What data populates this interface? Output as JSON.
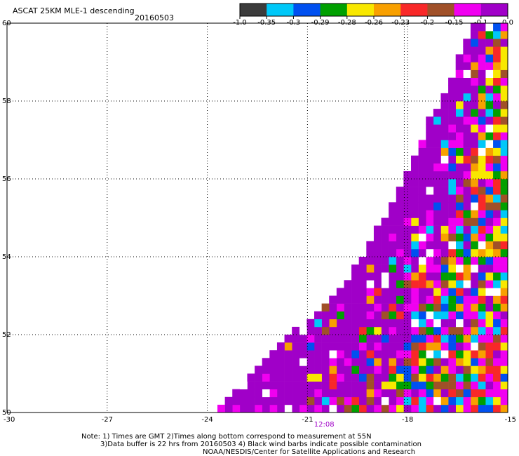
{
  "chart_data": {
    "type": "heatmap",
    "title": "ASCAT 25KM MLE-1 descending",
    "date": "20160503",
    "xlim": [
      -30,
      -15
    ],
    "ylim": [
      50,
      60
    ],
    "x_ticks": [
      "-30",
      "-27",
      "-24",
      "-21",
      "-18",
      "-15"
    ],
    "y_ticks": [
      "50",
      "52",
      "54",
      "56",
      "58",
      "60"
    ],
    "grid": "dotted",
    "time_label": "12:08",
    "time_label_lon": -20.5,
    "time_line_lon": -18.1,
    "swath_edge": [
      [
        -24.0,
        50.0
      ],
      [
        -22.0,
        51.7
      ],
      [
        -20.0,
        53.2
      ],
      [
        -18.5,
        55.5
      ],
      [
        -17.5,
        57.4
      ],
      [
        -16.6,
        59.0
      ],
      [
        -16.2,
        60.0
      ]
    ],
    "colorbar": {
      "labels": [
        "-1.0",
        "-0.35",
        "-0.3",
        "-0.29",
        "-0.28",
        "-0.26",
        "-0.23",
        "-0.2",
        "-0.15",
        "-0.1",
        "0.0"
      ],
      "colors": [
        "#3c3c3c",
        "#00c8f8",
        "#0050f0",
        "#00a000",
        "#f8e800",
        "#f8a000",
        "#f82828",
        "#a05028",
        "#f000f0",
        "#a000c8"
      ]
    }
  },
  "notes": {
    "line1": "Note: 1) Times are GMT 2)Times along bottom correspond to measurement at 55N",
    "line2": "3)Data buffer is 22 hrs from 20160503 4) Black wind barbs indicate possible contamination",
    "line3": "NOAA/NESDIS/Center for Satellite Applications and Research"
  }
}
